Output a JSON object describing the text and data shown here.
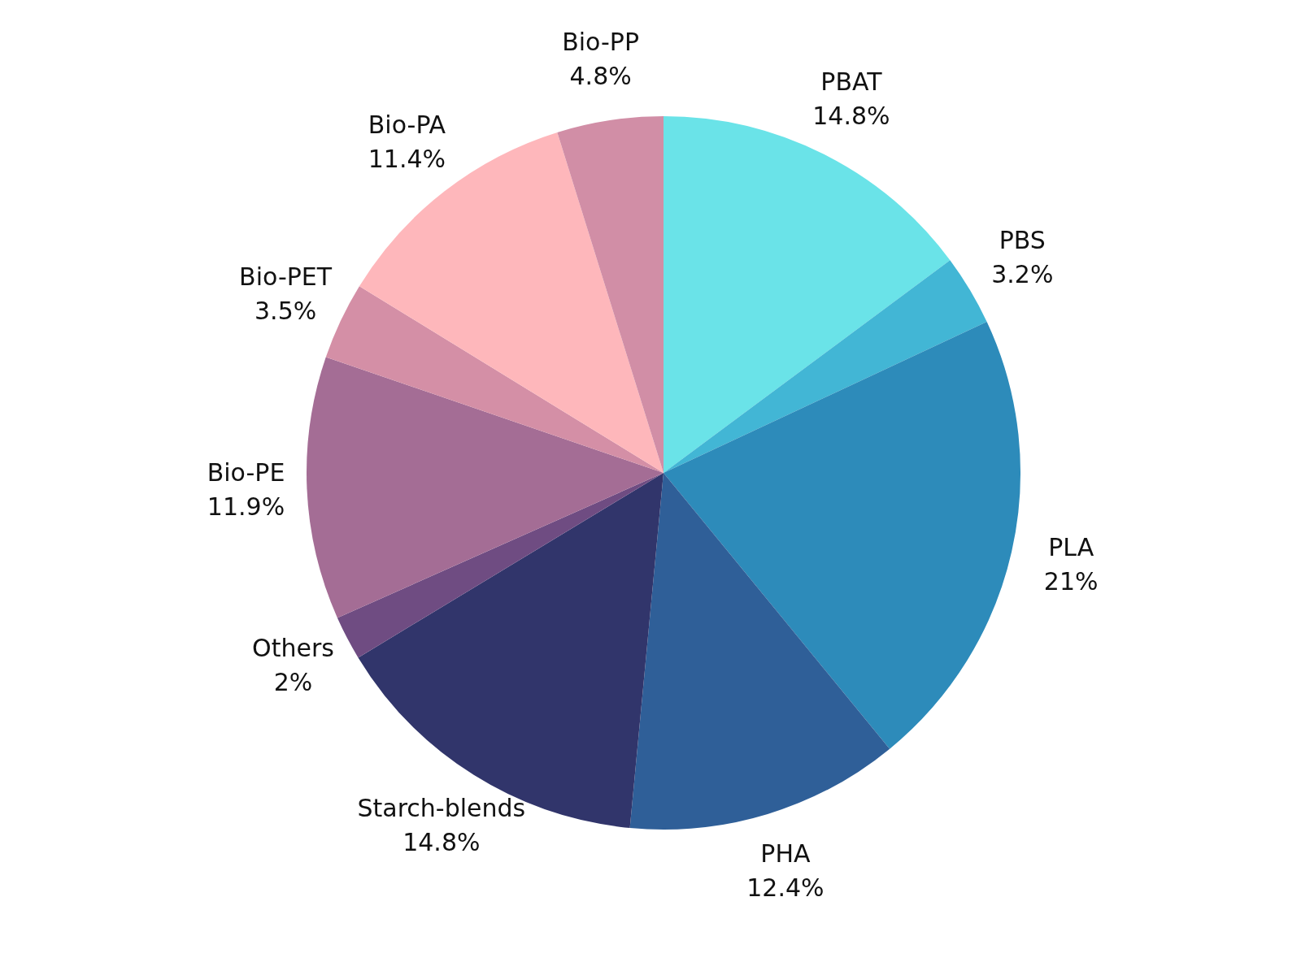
{
  "chart_data": {
    "type": "pie",
    "categories": [
      "PBAT",
      "PBS",
      "PLA",
      "PHA",
      "Starch-blends",
      "Others",
      "Bio-PE",
      "Bio-PET",
      "Bio-PA",
      "Bio-PP"
    ],
    "values": [
      14.8,
      3.2,
      21,
      12.4,
      14.8,
      2,
      11.9,
      3.5,
      11.4,
      4.8
    ],
    "value_labels": [
      "14.8%",
      "3.2%",
      "21%",
      "12.4%",
      "14.8%",
      "2%",
      "11.9%",
      "3.5%",
      "11.4%",
      "4.8%"
    ],
    "colors": [
      "#6ae3e8",
      "#42b6d5",
      "#2d8bba",
      "#2f5f98",
      "#31356b",
      "#6f4c82",
      "#a46d95",
      "#d48fa6",
      "#feb7bb",
      "#d18ea6"
    ],
    "legend": false
  }
}
